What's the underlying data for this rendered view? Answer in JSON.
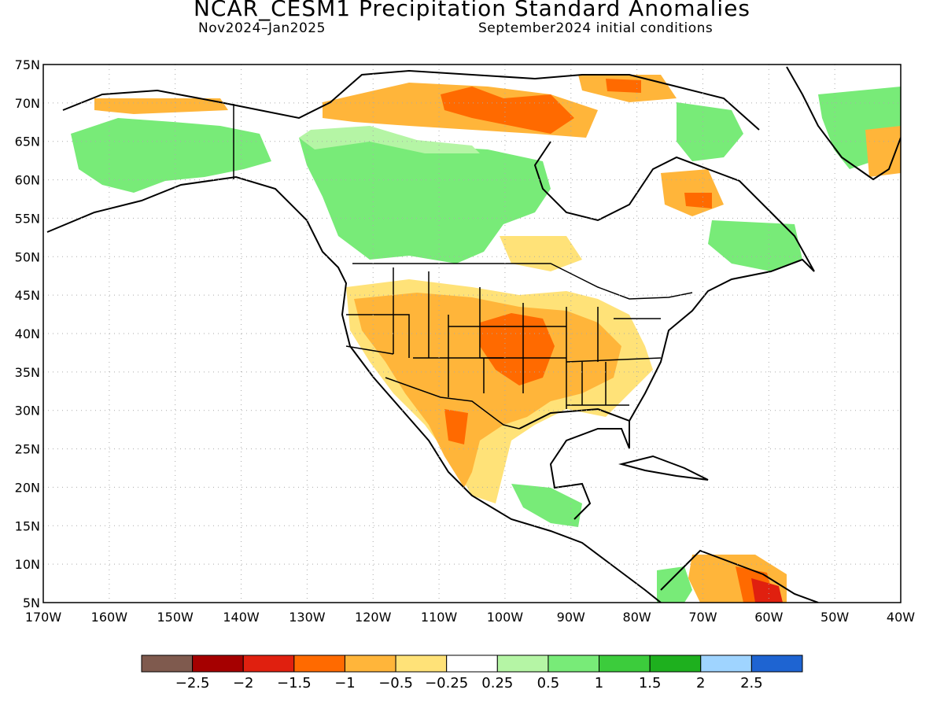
{
  "title": "NCAR_CESM1 Precipitation Standard Anomalies",
  "subtitle_left": "Nov2024–Jan2025",
  "subtitle_right": "September2024 initial conditions",
  "map": {
    "lon_range": [
      -170,
      -40
    ],
    "lat_range": [
      5,
      75
    ],
    "lon_labels": [
      "170W",
      "160W",
      "150W",
      "140W",
      "130W",
      "120W",
      "110W",
      "100W",
      "90W",
      "80W",
      "70W",
      "60W",
      "50W",
      "40W"
    ],
    "lat_labels": [
      "75N",
      "70N",
      "65N",
      "60N",
      "55N",
      "50N",
      "45N",
      "40N",
      "35N",
      "30N",
      "25N",
      "20N",
      "15N",
      "10N",
      "5N"
    ]
  },
  "colorbar": {
    "colors": [
      "#7f5a4e",
      "#a50000",
      "#e0200f",
      "#ff6a00",
      "#ffb53a",
      "#ffe278",
      "#ffffff",
      "#b5f5a5",
      "#78eb78",
      "#3ccc3c",
      "#1eb01e",
      "#9fd4ff",
      "#1e64d2"
    ],
    "labels": [
      "−2.5",
      "−2",
      "−1.5",
      "−1",
      "−0.5",
      "−0.25",
      "0.25",
      "0.5",
      "1",
      "1.5",
      "2",
      "2.5"
    ]
  }
}
